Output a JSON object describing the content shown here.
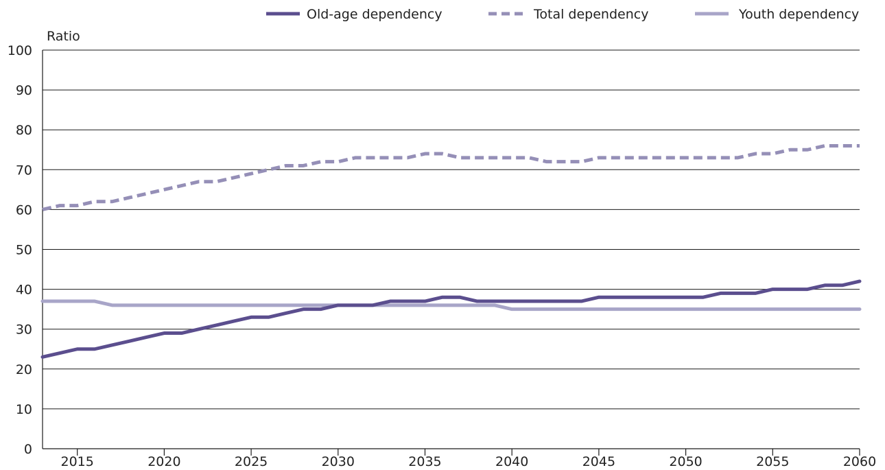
{
  "chart_data": {
    "type": "line",
    "ylabel": "Ratio",
    "xlim": [
      2013,
      2060
    ],
    "ylim": [
      0,
      100
    ],
    "yticks": [
      0,
      10,
      20,
      30,
      40,
      50,
      60,
      70,
      80,
      90,
      100
    ],
    "xticks": [
      2015,
      2020,
      2025,
      2030,
      2035,
      2040,
      2045,
      2050,
      2055,
      2060
    ],
    "grid": "horizontal",
    "legend_position": "top",
    "x": [
      2013,
      2014,
      2015,
      2016,
      2017,
      2018,
      2019,
      2020,
      2021,
      2022,
      2023,
      2024,
      2025,
      2026,
      2027,
      2028,
      2029,
      2030,
      2031,
      2032,
      2033,
      2034,
      2035,
      2036,
      2037,
      2038,
      2039,
      2040,
      2041,
      2042,
      2043,
      2044,
      2045,
      2046,
      2047,
      2048,
      2049,
      2050,
      2051,
      2052,
      2053,
      2054,
      2055,
      2056,
      2057,
      2058,
      2059,
      2060
    ],
    "series": [
      {
        "name": "Old-age dependency",
        "color": "#5b4e8e",
        "dash": "solid",
        "values": [
          23,
          24,
          25,
          25,
          26,
          27,
          28,
          29,
          29,
          30,
          31,
          32,
          33,
          33,
          34,
          35,
          35,
          36,
          36,
          36,
          37,
          37,
          37,
          38,
          38,
          37,
          37,
          37,
          37,
          37,
          37,
          37,
          38,
          38,
          38,
          38,
          38,
          38,
          38,
          39,
          39,
          39,
          40,
          40,
          40,
          41,
          41,
          42
        ]
      },
      {
        "name": "Total dependency",
        "color": "#958fb7",
        "dash": "dashed",
        "values": [
          60,
          61,
          61,
          62,
          62,
          63,
          64,
          65,
          66,
          67,
          67,
          68,
          69,
          70,
          71,
          71,
          72,
          72,
          73,
          73,
          73,
          73,
          74,
          74,
          73,
          73,
          73,
          73,
          73,
          72,
          72,
          72,
          73,
          73,
          73,
          73,
          73,
          73,
          73,
          73,
          73,
          74,
          74,
          75,
          75,
          76,
          76,
          76
        ]
      },
      {
        "name": "Youth dependency",
        "color": "#a8a5c8",
        "dash": "solid",
        "values": [
          37,
          37,
          37,
          37,
          36,
          36,
          36,
          36,
          36,
          36,
          36,
          36,
          36,
          36,
          36,
          36,
          36,
          36,
          36,
          36,
          36,
          36,
          36,
          36,
          36,
          36,
          36,
          35,
          35,
          35,
          35,
          35,
          35,
          35,
          35,
          35,
          35,
          35,
          35,
          35,
          35,
          35,
          35,
          35,
          35,
          35,
          35,
          35
        ]
      }
    ]
  }
}
